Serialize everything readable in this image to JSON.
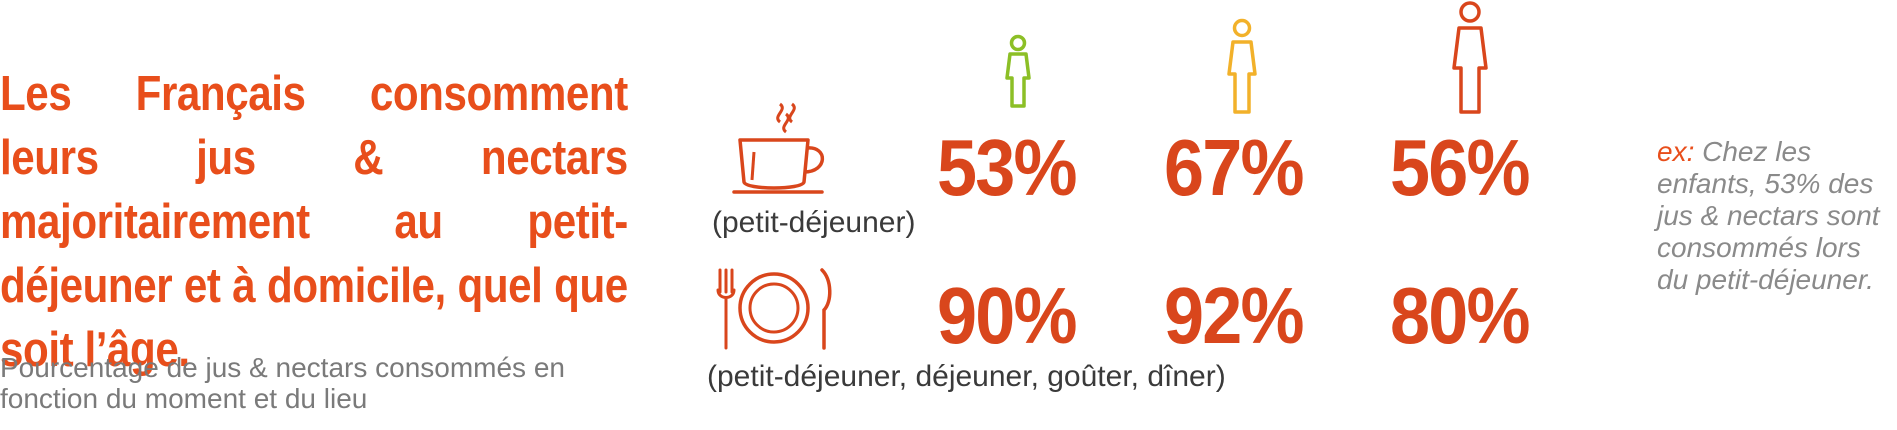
{
  "headline": "Les Français consomment leurs jus & nectars majoritairement au petit-déjeuner et à domicile, quel que soit l’âge.",
  "subtitle": "Pourcentage de jus & nectars consommés en fonction du moment et du lieu",
  "figures": [
    {
      "icon": "child-figure-icon",
      "color": "#8cbf26"
    },
    {
      "icon": "teen-figure-icon",
      "color": "#f2b12a"
    },
    {
      "icon": "adult-figure-icon",
      "color": "#d9461c"
    }
  ],
  "rows": [
    {
      "icon": "coffee-cup-icon",
      "caption": "(petit-déjeuner)",
      "values": [
        "53%",
        "67%",
        "56%"
      ]
    },
    {
      "icon": "plate-cutlery-icon",
      "caption": "(petit-déjeuner, déjeuner, goûter, dîner)",
      "values": [
        "90%",
        "92%",
        "80%"
      ]
    }
  ],
  "note": {
    "prefix": "ex:",
    "text": "Chez les enfants, 53% des jus & nectars sont consommés lors du petit-déjeuner."
  },
  "colors": {
    "accent": "#e84e1b",
    "value": "#d9461c",
    "muted": "#7a7a7a"
  }
}
